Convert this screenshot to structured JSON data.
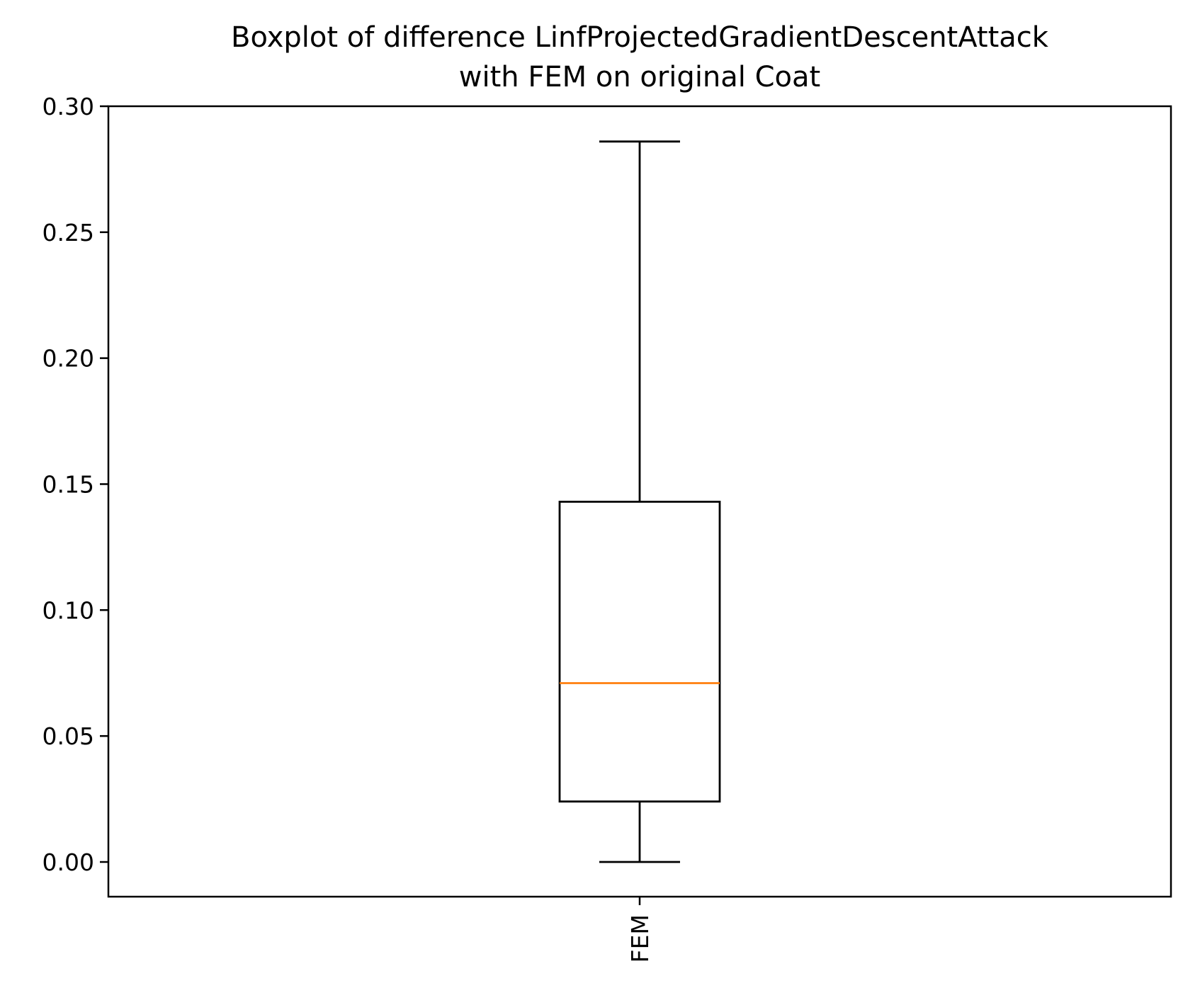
{
  "chart_data": {
    "type": "box",
    "title": "Boxplot of difference LinfProjectedGradientDescentAttack\nwith FEM on original Coat",
    "xlabel": "",
    "ylabel": "",
    "categories": [
      "FEM"
    ],
    "boxes": [
      {
        "name": "FEM",
        "whisker_low": 0.0,
        "q1": 0.024,
        "median": 0.071,
        "q3": 0.143,
        "whisker_high": 0.286
      }
    ],
    "ylim": [
      -0.014,
      0.3
    ],
    "yticks": [
      0.0,
      0.05,
      0.1,
      0.15,
      0.2,
      0.25,
      0.3
    ],
    "ytick_labels": [
      "0.00",
      "0.05",
      "0.10",
      "0.15",
      "0.20",
      "0.25",
      "0.30"
    ],
    "grid": false,
    "colors": {
      "median": "#ff7f0e",
      "box": "#000000"
    }
  }
}
